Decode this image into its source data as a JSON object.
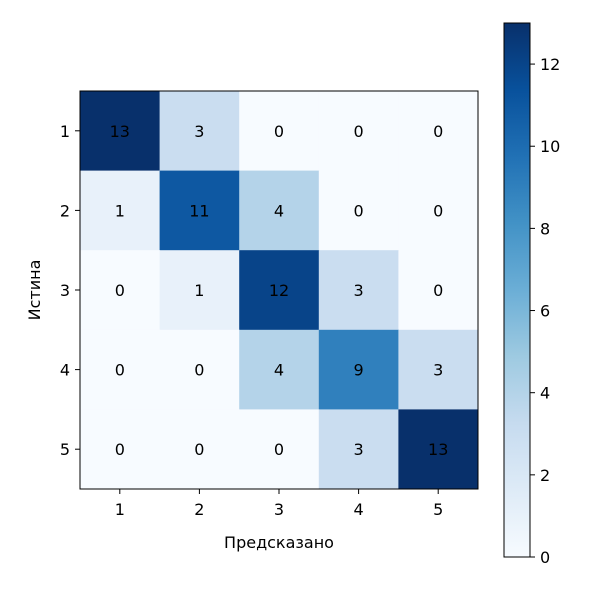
{
  "chart_data": {
    "type": "heatmap",
    "title": "",
    "xlabel": "Предсказано",
    "ylabel": "Истина",
    "x_tick_labels": [
      "1",
      "2",
      "3",
      "4",
      "5"
    ],
    "y_tick_labels": [
      "1",
      "2",
      "3",
      "4",
      "5"
    ],
    "matrix": [
      [
        13,
        3,
        0,
        0,
        0
      ],
      [
        1,
        11,
        4,
        0,
        0
      ],
      [
        0,
        1,
        12,
        3,
        0
      ],
      [
        0,
        0,
        4,
        9,
        3
      ],
      [
        0,
        0,
        0,
        3,
        13
      ]
    ],
    "colormap": "Blues",
    "colorbar": {
      "min": 0,
      "max": 13,
      "ticks": [
        0,
        2,
        4,
        6,
        8,
        10,
        12
      ]
    },
    "colors": {
      "low": "#f7fbff",
      "high": "#08306b",
      "text": "#000000",
      "axis": "#000000"
    }
  }
}
